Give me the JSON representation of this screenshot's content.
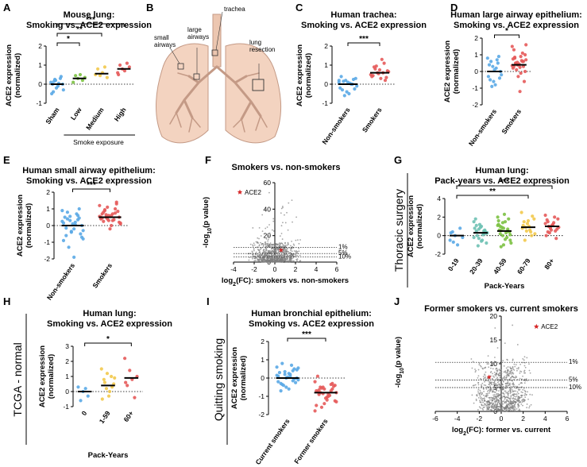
{
  "panel_letters": [
    "A",
    "B",
    "C",
    "D",
    "E",
    "F",
    "G",
    "H",
    "I",
    "J"
  ],
  "colors": {
    "blue": "#5aa9e6",
    "green": "#7cc142",
    "yellow": "#f2c94c",
    "red": "#e55a5a",
    "teal": "#6ec1b4",
    "grey": "#7f7f7f",
    "star": "#d62728",
    "lung": "#f3d3c0",
    "lungEdge": "#c49a86"
  },
  "diagram": {
    "labels": [
      "small airways",
      "large airways",
      "trachea",
      "lung resection"
    ]
  },
  "side_labels": {
    "G": "Thoracic surgery",
    "H": "TCGA - normal",
    "I": "Quitting smoking"
  },
  "chart_data": [
    {
      "id": "A",
      "type": "scatter",
      "title": [
        "Mouse lung:",
        "Smoking vs. ACE2 expression"
      ],
      "ylabel": [
        "ACE2 expression",
        "(normalized)"
      ],
      "ylim": [
        -1,
        2
      ],
      "yticks": [
        -1,
        0,
        1,
        2
      ],
      "categories": [
        "Sham",
        "Low",
        "Medium",
        "High"
      ],
      "group_colors": [
        "blue",
        "green",
        "yellow",
        "red"
      ],
      "means": [
        0.0,
        0.3,
        0.55,
        0.8
      ],
      "points": [
        [
          0.1,
          -0.4,
          0.2,
          -0.1,
          0.3,
          0.0,
          -0.5,
          0.15,
          -0.2,
          0.05,
          0.4,
          -0.3,
          0.0,
          0.25
        ],
        [
          0.1,
          0.45,
          0.3,
          0.5,
          0.2,
          0.35
        ],
        [
          0.5,
          0.8,
          0.45,
          0.6,
          0.9,
          0.35
        ],
        [
          0.6,
          1.0,
          0.8,
          0.7,
          1.1,
          0.9,
          0.5
        ]
      ],
      "xlabel": "Smoke exposure",
      "significance": [
        {
          "from": 0,
          "to": 3,
          "label": "***"
        },
        {
          "from": 0,
          "to": 2,
          "label": "**"
        },
        {
          "from": 0,
          "to": 1,
          "label": "*"
        }
      ]
    },
    {
      "id": "C",
      "type": "scatter",
      "title": [
        "Human trachea:",
        "Smoking vs. ACE2 expression"
      ],
      "ylabel": [
        "ACE2 expression",
        "(normalized)"
      ],
      "ylim": [
        -1,
        2
      ],
      "yticks": [
        -1,
        0,
        1,
        2
      ],
      "categories": [
        "Non-smokers",
        "Smokers"
      ],
      "group_colors": [
        "blue",
        "red"
      ],
      "means": [
        0.0,
        0.6
      ],
      "points": [
        [
          0.1,
          -0.3,
          0.2,
          -0.5,
          0.0,
          0.3,
          -0.2,
          0.15,
          -0.4,
          0.05,
          0.25,
          -0.1,
          0.4,
          -0.6,
          0.1,
          0.0,
          -0.25,
          0.2
        ],
        [
          0.5,
          0.9,
          0.6,
          0.3,
          1.1,
          0.7,
          0.4,
          0.8,
          0.55,
          1.3,
          0.2,
          0.65,
          0.45,
          0.95,
          0.75,
          0.6,
          0.35
        ]
      ],
      "significance": [
        {
          "from": 0,
          "to": 1,
          "label": "***"
        }
      ]
    },
    {
      "id": "D",
      "type": "scatter",
      "title": [
        "Human large airway epithelium:",
        "Smoking vs. ACE2 expression"
      ],
      "ylabel": [
        "ACE2 expression",
        "(normalized)"
      ],
      "ylim": [
        -2,
        2
      ],
      "yticks": [
        -2,
        -1,
        0,
        1,
        2
      ],
      "categories": [
        "Non-smokers",
        "Smokers"
      ],
      "group_colors": [
        "blue",
        "red"
      ],
      "means": [
        0.0,
        0.4
      ],
      "points": [
        [
          0.8,
          -0.5,
          0.3,
          -0.8,
          0.5,
          0.0,
          -0.3,
          0.6,
          -0.6,
          0.2,
          0.9,
          -0.2,
          0.4,
          -0.9,
          0.1,
          0.7,
          -0.4
        ],
        [
          1.5,
          0.8,
          0.4,
          -1.2,
          0.6,
          1.0,
          0.2,
          0.5,
          -0.3,
          0.9,
          0.3,
          0.7,
          1.3,
          0.1,
          0.45,
          0.65,
          -0.6,
          0.35,
          0.85,
          0.55,
          0.25,
          1.1,
          0.0,
          0.75,
          0.5,
          0.4,
          -0.1,
          0.6,
          1.6,
          0.3
        ]
      ],
      "significance": [
        {
          "from": 0,
          "to": 1,
          "label": "*"
        }
      ]
    },
    {
      "id": "E",
      "type": "scatter",
      "title": [
        "Human small airway epithelium:",
        "Smoking vs. ACE2 expression"
      ],
      "ylabel": [
        "ACE2 expression",
        "(normalized)"
      ],
      "ylim": [
        -2,
        2
      ],
      "yticks": [
        -2,
        -1,
        0,
        1,
        2
      ],
      "categories": [
        "Non-smokers",
        "Smokers"
      ],
      "group_colors": [
        "blue",
        "red"
      ],
      "means": [
        0.0,
        0.5
      ],
      "points": [
        [
          0.9,
          -0.6,
          0.3,
          -0.2,
          0.6,
          0.0,
          -0.9,
          0.4,
          -0.4,
          0.2,
          1.0,
          -0.3,
          0.5,
          -1.3,
          0.1,
          0.7,
          -0.5,
          0.25,
          -0.15,
          0.55,
          -1.9,
          0.35,
          -0.7,
          0.15,
          0.8,
          -0.35,
          0.05,
          0.45,
          -0.8
        ],
        [
          1.2,
          0.8,
          0.4,
          0.6,
          1.0,
          0.2,
          0.5,
          0.9,
          0.3,
          0.7,
          1.4,
          0.1,
          0.45,
          0.65,
          -0.2,
          0.35,
          0.85,
          0.55,
          0.25,
          1.1,
          0.0,
          0.75,
          0.5,
          0.4,
          0.95,
          0.6,
          0.3,
          1.3,
          0.15,
          0.7,
          0.5
        ]
      ],
      "significance": [
        {
          "from": 0,
          "to": 1,
          "label": "***"
        }
      ]
    },
    {
      "id": "F",
      "type": "volcano",
      "title": [
        "Smokers vs. non-smokers"
      ],
      "xlabel": "log2(FC): smokers vs. non-smokers",
      "ylabel": "-log10(p value)",
      "xlim": [
        -4,
        6
      ],
      "xticks": [
        -4,
        -2,
        0,
        2,
        4,
        6
      ],
      "ylim": [
        0,
        60
      ],
      "yticks": [
        0,
        20,
        40,
        60
      ],
      "thresholds": [
        {
          "y": 11,
          "label": "1%"
        },
        {
          "y": 6.5,
          "label": "5%"
        },
        {
          "y": 4,
          "label": "10%"
        }
      ],
      "highlight": {
        "label": "ACE2",
        "x": 0.6,
        "y": 9
      }
    },
    {
      "id": "G",
      "type": "scatter",
      "title": [
        "Human lung:",
        "Pack-years vs. ACE2 expression"
      ],
      "ylabel": [
        "ACE2 expression",
        "(normalized)"
      ],
      "ylim": [
        -2,
        4
      ],
      "yticks": [
        -2,
        0,
        2,
        4
      ],
      "categories": [
        "0-19",
        "20-39",
        "40-59",
        "60-79",
        "80+"
      ],
      "group_colors": [
        "blue",
        "teal",
        "green",
        "yellow",
        "red"
      ],
      "xlabel": "Pack-Years",
      "means": [
        0.0,
        0.3,
        0.5,
        0.9,
        1.0
      ],
      "points": [
        [
          -0.5,
          0.4,
          0.0,
          -1.0,
          0.8,
          -0.2,
          0.3,
          -0.7
        ],
        [
          1.5,
          0.5,
          -0.3,
          1.0,
          0.2,
          -0.8,
          0.8,
          0.0,
          1.2,
          -0.5,
          0.6,
          0.3,
          1.8,
          -1.1,
          0.9,
          0.1,
          0.4,
          -0.2,
          1.1,
          0.7,
          -0.6,
          0.5,
          0.25
        ],
        [
          2.0,
          1.0,
          0.0,
          1.5,
          0.5,
          -0.5,
          1.2,
          -1.2,
          0.8,
          0.3,
          1.8,
          -0.8,
          0.6,
          0.9,
          2.3,
          -0.2,
          0.4,
          1.1,
          0.2,
          1.4,
          -0.4,
          0.7,
          0.1,
          1.6,
          0.55,
          -1.0
        ],
        [
          2.5,
          1.5,
          0.5,
          1.0,
          0.0,
          1.8,
          0.8,
          -0.5,
          1.3,
          0.6,
          2.1,
          0.2,
          1.1,
          0.9,
          1.6,
          0.4
        ],
        [
          2.2,
          1.5,
          0.8,
          1.2,
          0.5,
          1.8,
          0.0,
          1.0,
          0.6,
          1.4,
          -0.3,
          0.9,
          1.7,
          0.3,
          1.1,
          2.0,
          0.7,
          1.3,
          0.4,
          0.95
        ]
      ],
      "significance": [
        {
          "from": 0,
          "to": 4,
          "label": "***"
        },
        {
          "from": 0,
          "to": 3,
          "label": "**"
        }
      ]
    },
    {
      "id": "H",
      "type": "scatter",
      "title": [
        "Human lung:",
        "Smoking vs. ACE2 expression"
      ],
      "ylabel": [
        "ACE2 expression",
        "(normalized)"
      ],
      "ylim": [
        -1,
        3
      ],
      "yticks": [
        -1,
        0,
        1,
        2,
        3
      ],
      "categories": [
        "0",
        "1-59",
        "60+"
      ],
      "group_colors": [
        "blue",
        "yellow",
        "red"
      ],
      "xlabel": "Pack-Years",
      "means": [
        0.0,
        0.4,
        0.9
      ],
      "points": [
        [
          0.3,
          -0.6,
          0.0,
          0.2,
          -0.3
        ],
        [
          1.5,
          0.8,
          0.2,
          -0.3,
          1.0,
          0.5,
          -0.5,
          0.6,
          1.2,
          0.0,
          0.3,
          0.9
        ],
        [
          2.2,
          0.4,
          1.4,
          0.8,
          -0.4,
          1.0,
          0.6
        ]
      ],
      "significance": [
        {
          "from": 0,
          "to": 2,
          "label": "*"
        }
      ]
    },
    {
      "id": "I",
      "type": "scatter",
      "title": [
        "Human bronchial epithelium:",
        "Smoking vs. ACE2 expression"
      ],
      "ylabel": [
        "ACE2 expression",
        "(normalized)"
      ],
      "ylim": [
        -2,
        2
      ],
      "yticks": [
        -2,
        -1,
        0,
        1,
        2
      ],
      "categories": [
        "Current smokers",
        "Former smokers"
      ],
      "group_colors": [
        "blue",
        "red"
      ],
      "means": [
        0.0,
        -0.8
      ],
      "points": [
        [
          0.6,
          -0.3,
          0.2,
          -0.6,
          0.4,
          0.0,
          -0.2,
          0.8,
          -0.5,
          0.1,
          0.5,
          -0.1,
          0.3,
          -0.4,
          0.05,
          0.7,
          -0.25,
          0.15,
          -0.7,
          0.35,
          0.25,
          -0.15,
          0.45,
          0.1,
          -0.35,
          0.0,
          0.2,
          -0.05,
          0.55
        ],
        [
          -0.2,
          -0.9,
          -0.5,
          -1.2,
          -0.7,
          -0.4,
          -1.5,
          -0.8,
          -0.6,
          -1.0,
          -0.3,
          -1.3,
          -0.75,
          -0.55,
          -1.1,
          -0.95,
          -0.45,
          -1.8,
          -0.65,
          -0.85,
          -1.05,
          -0.35,
          -1.25,
          -0.7,
          -0.5,
          -1.4,
          -0.9,
          -0.6,
          -0.8,
          0.1,
          -1.6
        ]
      ],
      "significance": [
        {
          "from": 0,
          "to": 1,
          "label": "***"
        }
      ]
    },
    {
      "id": "J",
      "type": "volcano",
      "title": [
        "Former smokers vs. current smokers"
      ],
      "xlabel": "log2(FC): former vs. current",
      "ylabel": "-log10(p value)",
      "xlim": [
        -6,
        6
      ],
      "xticks": [
        -6,
        -4,
        -2,
        0,
        2,
        4,
        6
      ],
      "ylim": [
        0,
        20
      ],
      "yticks": [
        0,
        5,
        10,
        15,
        20
      ],
      "thresholds": [
        {
          "y": 10.3,
          "label": "1%"
        },
        {
          "y": 6.6,
          "label": "5%"
        },
        {
          "y": 5.0,
          "label": "10%"
        }
      ],
      "highlight": {
        "label": "ACE2",
        "x": -1.1,
        "y": 7.2
      },
      "legend_pos": [
        3.2,
        17.8
      ]
    }
  ]
}
